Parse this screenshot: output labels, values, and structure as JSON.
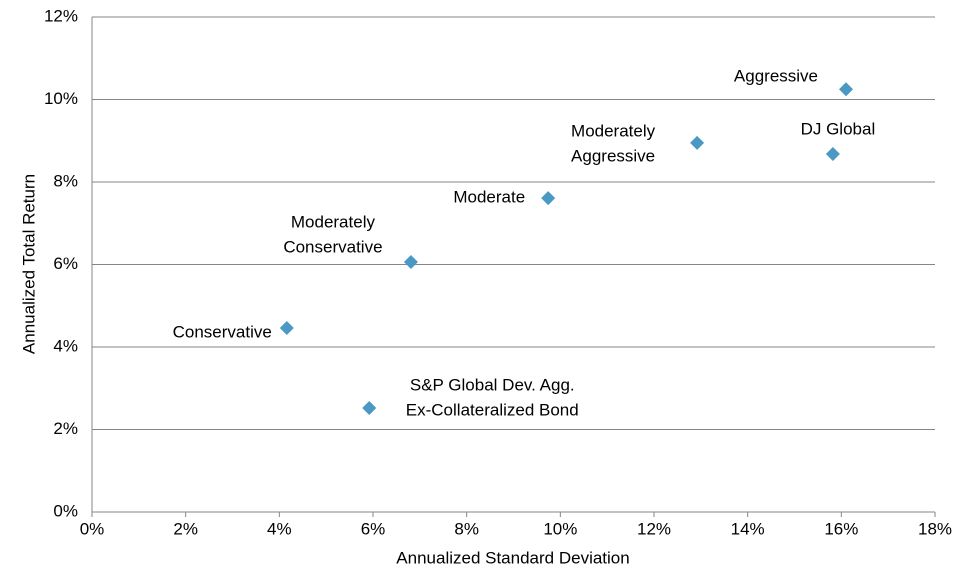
{
  "chart_data": {
    "type": "scatter",
    "xlabel": "Annualized Standard Deviation",
    "ylabel": "Annualized Total Return",
    "point_labels": [
      [
        "Aggressive"
      ],
      [
        "DJ Global"
      ],
      [
        "Moderately",
        "Aggressive"
      ],
      [
        "Moderate"
      ],
      [
        "Moderately",
        "Conservative"
      ],
      [
        "Conservative"
      ],
      [
        "S&P Global Dev. Agg.",
        "Ex-Collateralized Bond"
      ]
    ],
    "x": [
      16.1,
      15.82,
      12.92,
      9.74,
      6.81,
      4.16,
      5.92
    ],
    "values": [
      10.25,
      8.68,
      8.95,
      7.61,
      6.06,
      4.46,
      2.52
    ],
    "color": "#4a98c4",
    "xlim": [
      0,
      18
    ],
    "xticks": [
      {
        "value": 0,
        "label": "0%"
      },
      {
        "value": 2,
        "label": "2%"
      },
      {
        "value": 4,
        "label": "4%"
      },
      {
        "value": 6,
        "label": "6%"
      },
      {
        "value": 8,
        "label": "8%"
      },
      {
        "value": 10,
        "label": "10%"
      },
      {
        "value": 12,
        "label": "12%"
      },
      {
        "value": 14,
        "label": "14%"
      },
      {
        "value": 16,
        "label": "16%"
      },
      {
        "value": 18,
        "label": "18%"
      }
    ],
    "ylim": [
      0,
      12
    ],
    "yticks": [
      {
        "value": 0,
        "label": "0%"
      },
      {
        "value": 2,
        "label": "2%"
      },
      {
        "value": 4,
        "label": "4%"
      },
      {
        "value": 6,
        "label": "6%"
      },
      {
        "value": 8,
        "label": "8%"
      },
      {
        "value": 10,
        "label": "10%"
      },
      {
        "value": 12,
        "label": "12%"
      }
    ],
    "grid": true
  }
}
